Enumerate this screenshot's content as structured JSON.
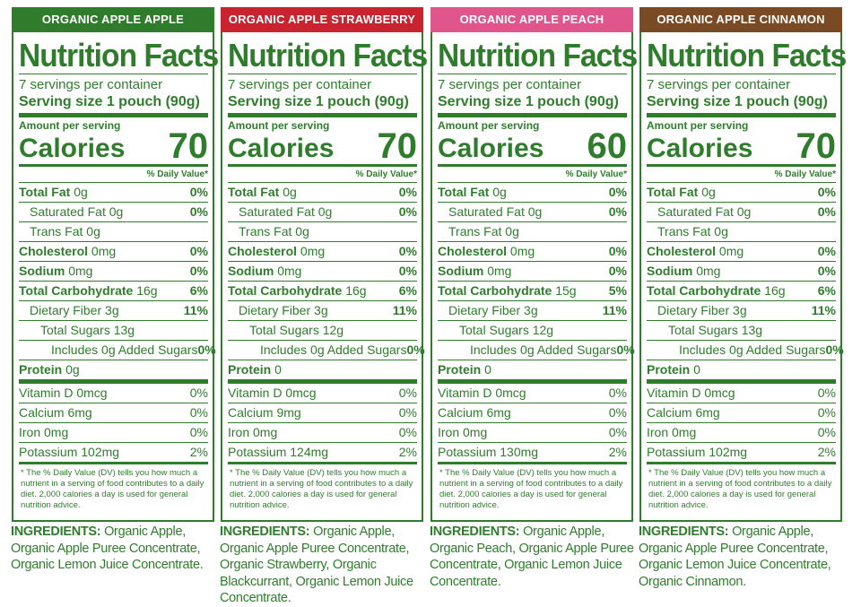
{
  "common": {
    "title": "Nutrition Facts",
    "servings": "7 servings per container",
    "serving_size": "Serving size 1 pouch (90g)",
    "amount_per_serving": "Amount per serving",
    "calories_label": "Calories",
    "daily_value_header": "% Daily Value*",
    "labels": {
      "total_fat": "Total Fat",
      "saturated_fat": "Saturated Fat",
      "trans_fat": "Trans Fat",
      "cholesterol": "Cholesterol",
      "sodium": "Sodium",
      "total_carb": "Total Carbohydrate",
      "dietary_fiber": "Dietary Fiber",
      "total_sugars": "Total Sugars",
      "includes": "Includes 0g Added Sugars",
      "protein": "Protein"
    },
    "footnote": "* The % Daily Value (DV) tells you how much a nutrient in a serving of food contributes to a daily diet. 2,000 calories a day is used for general nutrition advice.",
    "ingredients_label": "INGREDIENTS:"
  },
  "panels": [
    {
      "header": "ORGANIC APPLE APPLE",
      "header_color": "#2f7d2c",
      "calories": "70",
      "total_fat": "0g",
      "total_fat_dv": "0%",
      "saturated_fat": "0g",
      "saturated_fat_dv": "0%",
      "trans_fat": "0g",
      "cholesterol": "0mg",
      "cholesterol_dv": "0%",
      "sodium": "0mg",
      "sodium_dv": "0%",
      "total_carb": "16g",
      "total_carb_dv": "6%",
      "dietary_fiber": "3g",
      "dietary_fiber_dv": "11%",
      "total_sugars": "13g",
      "includes_dv": "0%",
      "protein": "0g",
      "vitamin_d": "Vitamin D 0mcg",
      "vitamin_d_dv": "0%",
      "calcium": "Calcium 6mg",
      "calcium_dv": "0%",
      "iron": "Iron 0mg",
      "iron_dv": "0%",
      "potassium": "Potassium 102mg",
      "potassium_dv": "2%",
      "ingredients": "Organic Apple, Organic Apple Puree Concentrate, Organic Lemon Juice Concentrate."
    },
    {
      "header": "ORGANIC APPLE STRAWBERRY",
      "header_color": "#c8232f",
      "calories": "70",
      "total_fat": "0g",
      "total_fat_dv": "0%",
      "saturated_fat": "0g",
      "saturated_fat_dv": "0%",
      "trans_fat": "0g",
      "cholesterol": "0mg",
      "cholesterol_dv": "0%",
      "sodium": "0mg",
      "sodium_dv": "0%",
      "total_carb": "16g",
      "total_carb_dv": "6%",
      "dietary_fiber": "3g",
      "dietary_fiber_dv": "11%",
      "total_sugars": "12g",
      "includes_dv": "0%",
      "protein": "0",
      "vitamin_d": "Vitamin D 0mcg",
      "vitamin_d_dv": "0%",
      "calcium": "Calcium 9mg",
      "calcium_dv": "0%",
      "iron": "Iron 0mg",
      "iron_dv": "0%",
      "potassium": "Potassium 124mg",
      "potassium_dv": "2%",
      "ingredients": "Organic Apple, Organic Apple Puree Concentrate, Organic Strawberry, Organic Blackcurrant, Organic Lemon Juice Concentrate."
    },
    {
      "header": "ORGANIC APPLE PEACH",
      "header_color": "#e0558b",
      "calories": "60",
      "total_fat": "0g",
      "total_fat_dv": "0%",
      "saturated_fat": "0g",
      "saturated_fat_dv": "0%",
      "trans_fat": "0g",
      "cholesterol": "0mg",
      "cholesterol_dv": "0%",
      "sodium": "0mg",
      "sodium_dv": "0%",
      "total_carb": "15g",
      "total_carb_dv": "5%",
      "dietary_fiber": "3g",
      "dietary_fiber_dv": "11%",
      "total_sugars": "12g",
      "includes_dv": "0%",
      "protein": "0",
      "vitamin_d": "Vitamin D 0mcg",
      "vitamin_d_dv": "0%",
      "calcium": "Calcium 6mg",
      "calcium_dv": "0%",
      "iron": "Iron 0mg",
      "iron_dv": "0%",
      "potassium": "Potassium 130mg",
      "potassium_dv": "2%",
      "ingredients": "Organic Apple, Organic Peach, Organic Apple Puree Concentrate, Organic Lemon Juice Concentrate."
    },
    {
      "header": "ORGANIC APPLE CINNAMON",
      "header_color": "#7a4a24",
      "calories": "70",
      "total_fat": "0g",
      "total_fat_dv": "0%",
      "saturated_fat": "0g",
      "saturated_fat_dv": "0%",
      "trans_fat": "0g",
      "cholesterol": "0mg",
      "cholesterol_dv": "0%",
      "sodium": "0mg",
      "sodium_dv": "0%",
      "total_carb": "16g",
      "total_carb_dv": "6%",
      "dietary_fiber": "3g",
      "dietary_fiber_dv": "11%",
      "total_sugars": "13g",
      "includes_dv": "0%",
      "protein": "0",
      "vitamin_d": "Vitamin D 0mcg",
      "vitamin_d_dv": "0%",
      "calcium": "Calcium 6mg",
      "calcium_dv": "0%",
      "iron": "Iron 0mg",
      "iron_dv": "0%",
      "potassium": "Potassium 102mg",
      "potassium_dv": "2%",
      "ingredients": "Organic Apple, Organic Apple Puree Concentrate, Organic Lemon Juice Concentrate, Organic Cinnamon."
    }
  ]
}
